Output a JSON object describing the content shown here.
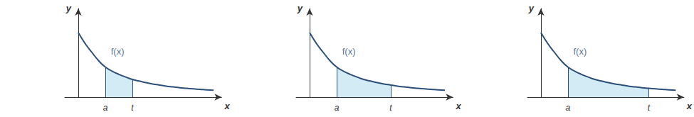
{
  "chart_data": [
    {
      "type": "line",
      "x": [
        0,
        0.25,
        0.5,
        0.75,
        1,
        1.25,
        1.5,
        1.75,
        2,
        2.25,
        2.5,
        2.75,
        3,
        3.25,
        3.5,
        3.75,
        4,
        4.25,
        4.5,
        4.75,
        5
      ],
      "series": [
        {
          "type": "line",
          "color": "#2b4f78",
          "values": [
            2.4,
            2.0,
            1.67,
            1.36,
            1.12,
            0.97,
            0.85,
            0.75,
            0.66,
            0.6,
            0.54,
            0.49,
            0.45,
            0.41,
            0.38,
            0.35,
            0.33,
            0.31,
            0.29,
            0.27,
            0.26
          ]
        },
        {
          "type": "area",
          "color": "#d3ebf5",
          "values": [
            null,
            null,
            null,
            null,
            1.12,
            0.97,
            0.85,
            0.75,
            0.66,
            null,
            null,
            null,
            null,
            null,
            null,
            null,
            null,
            null,
            null,
            null,
            null
          ]
        }
      ],
      "xlim": [
        -0.5,
        5.3
      ],
      "ylim": [
        0,
        3.3
      ],
      "xticks": [
        {
          "value": 1,
          "label": "a"
        },
        {
          "value": 2,
          "label": "t"
        }
      ],
      "tick_labels": "x",
      "grid": false,
      "x_label": "x",
      "y_label": "y",
      "annotations": [
        {
          "text": "f(x)",
          "x": 1.45,
          "y": 1.7
        }
      ]
    },
    {
      "type": "line",
      "x": [
        0,
        0.25,
        0.5,
        0.75,
        1,
        1.25,
        1.5,
        1.75,
        2,
        2.25,
        2.5,
        2.75,
        3,
        3.25,
        3.5,
        3.75,
        4,
        4.25,
        4.5,
        4.75,
        5
      ],
      "series": [
        {
          "type": "line",
          "color": "#2b4f78",
          "values": [
            2.4,
            2.0,
            1.67,
            1.36,
            1.12,
            0.97,
            0.85,
            0.75,
            0.66,
            0.6,
            0.54,
            0.49,
            0.45,
            0.41,
            0.38,
            0.35,
            0.33,
            0.31,
            0.29,
            0.27,
            0.26
          ]
        },
        {
          "type": "area",
          "color": "#d3ebf5",
          "values": [
            null,
            null,
            null,
            null,
            1.12,
            0.97,
            0.85,
            0.75,
            0.66,
            0.6,
            0.54,
            0.49,
            0.45,
            null,
            null,
            null,
            null,
            null,
            null,
            null,
            null
          ]
        }
      ],
      "xlim": [
        -0.5,
        5.3
      ],
      "ylim": [
        0,
        3.3
      ],
      "xticks": [
        {
          "value": 1,
          "label": "a"
        },
        {
          "value": 3,
          "label": "t"
        }
      ],
      "tick_labels": "x",
      "grid": false,
      "x_label": "x",
      "y_label": "y",
      "annotations": [
        {
          "text": "f(x)",
          "x": 1.45,
          "y": 1.7
        }
      ]
    },
    {
      "type": "line",
      "x": [
        0,
        0.25,
        0.5,
        0.75,
        1,
        1.25,
        1.5,
        1.75,
        2,
        2.25,
        2.5,
        2.75,
        3,
        3.25,
        3.5,
        3.75,
        4,
        4.25,
        4.5,
        4.75,
        5
      ],
      "series": [
        {
          "type": "line",
          "color": "#2b4f78",
          "values": [
            2.4,
            2.0,
            1.67,
            1.36,
            1.12,
            0.97,
            0.85,
            0.75,
            0.66,
            0.6,
            0.54,
            0.49,
            0.45,
            0.41,
            0.38,
            0.35,
            0.33,
            0.31,
            0.29,
            0.27,
            0.26
          ]
        },
        {
          "type": "area",
          "color": "#d3ebf5",
          "values": [
            null,
            null,
            null,
            null,
            1.12,
            0.97,
            0.85,
            0.75,
            0.66,
            0.6,
            0.54,
            0.49,
            0.45,
            0.41,
            0.38,
            0.35,
            0.33,
            null,
            null,
            null,
            null
          ]
        }
      ],
      "xlim": [
        -0.5,
        5.3
      ],
      "ylim": [
        0,
        3.3
      ],
      "xticks": [
        {
          "value": 1,
          "label": "a"
        },
        {
          "value": 4,
          "label": "t"
        }
      ],
      "tick_labels": "x",
      "grid": false,
      "x_label": "x",
      "y_label": "y",
      "annotations": [
        {
          "text": "f(x)",
          "x": 1.45,
          "y": 1.7
        }
      ]
    }
  ]
}
